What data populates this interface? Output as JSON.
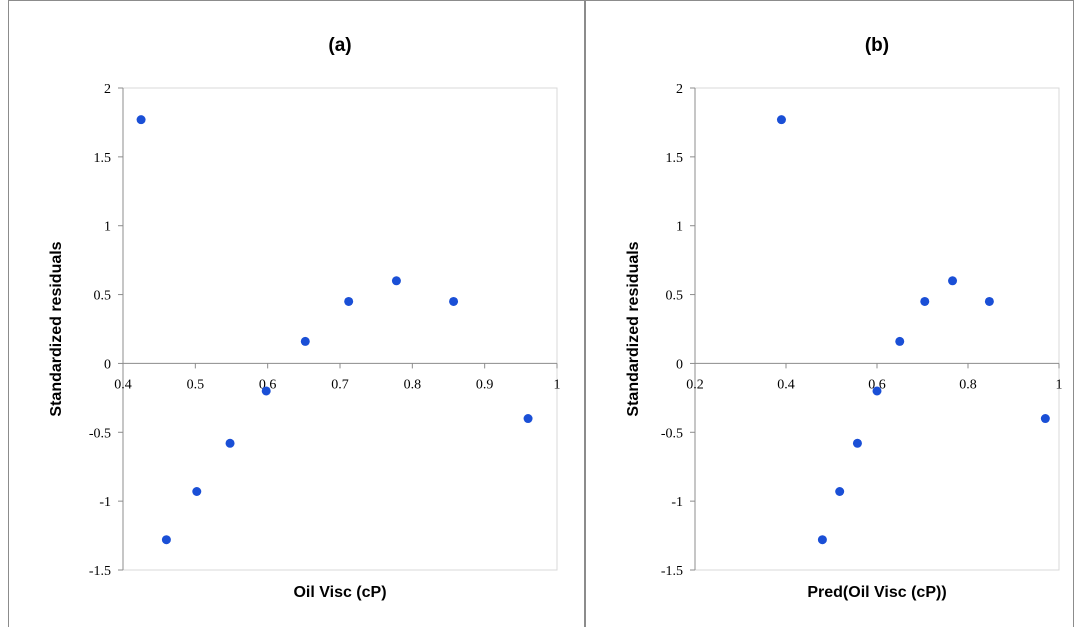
{
  "chart_data": [
    {
      "type": "scatter",
      "title": "(a)",
      "xlabel": "Oil Visc (cP)",
      "ylabel": "Standardized residuals",
      "xlim": [
        0.4,
        1.0
      ],
      "ylim": [
        -1.5,
        2.0
      ],
      "xticks": [
        0.4,
        0.5,
        0.6,
        0.7,
        0.8,
        0.9,
        1.0
      ],
      "xtick_labels": [
        "0.4",
        "0.5",
        "0.6",
        "0.7",
        "0.8",
        "0.9",
        "1"
      ],
      "yticks": [
        -1.5,
        -1.0,
        -0.5,
        0.0,
        0.5,
        1.0,
        1.5,
        2.0
      ],
      "ytick_labels": [
        "-1.5",
        "-1",
        "-0.5",
        "0",
        "0.5",
        "1",
        "1.5",
        "2"
      ],
      "grid": false,
      "marker_color": "#1a4fd6",
      "points": [
        {
          "x": 0.425,
          "y": 1.77
        },
        {
          "x": 0.46,
          "y": -1.28
        },
        {
          "x": 0.502,
          "y": -0.93
        },
        {
          "x": 0.548,
          "y": -0.58
        },
        {
          "x": 0.598,
          "y": -0.2
        },
        {
          "x": 0.652,
          "y": 0.16
        },
        {
          "x": 0.712,
          "y": 0.45
        },
        {
          "x": 0.778,
          "y": 0.6
        },
        {
          "x": 0.857,
          "y": 0.45
        },
        {
          "x": 0.96,
          "y": -0.4
        }
      ]
    },
    {
      "type": "scatter",
      "title": "(b)",
      "xlabel": "Pred(Oil Visc (cP))",
      "ylabel": "Standardized residuals",
      "xlim": [
        0.2,
        1.0
      ],
      "ylim": [
        -1.5,
        2.0
      ],
      "xticks": [
        0.2,
        0.4,
        0.6,
        0.8,
        1.0
      ],
      "xtick_labels": [
        "0.2",
        "0.4",
        "0.6",
        "0.8",
        "1"
      ],
      "yticks": [
        -1.5,
        -1.0,
        -0.5,
        0.0,
        0.5,
        1.0,
        1.5,
        2.0
      ],
      "ytick_labels": [
        "-1.5",
        "-1",
        "-0.5",
        "0",
        "0.5",
        "1",
        "1.5",
        "2"
      ],
      "grid": false,
      "marker_color": "#1a4fd6",
      "points": [
        {
          "x": 0.39,
          "y": 1.77
        },
        {
          "x": 0.48,
          "y": -1.28
        },
        {
          "x": 0.518,
          "y": -0.93
        },
        {
          "x": 0.557,
          "y": -0.58
        },
        {
          "x": 0.6,
          "y": -0.2
        },
        {
          "x": 0.65,
          "y": 0.16
        },
        {
          "x": 0.705,
          "y": 0.45
        },
        {
          "x": 0.766,
          "y": 0.6
        },
        {
          "x": 0.847,
          "y": 0.45
        },
        {
          "x": 0.97,
          "y": -0.4
        }
      ]
    }
  ]
}
